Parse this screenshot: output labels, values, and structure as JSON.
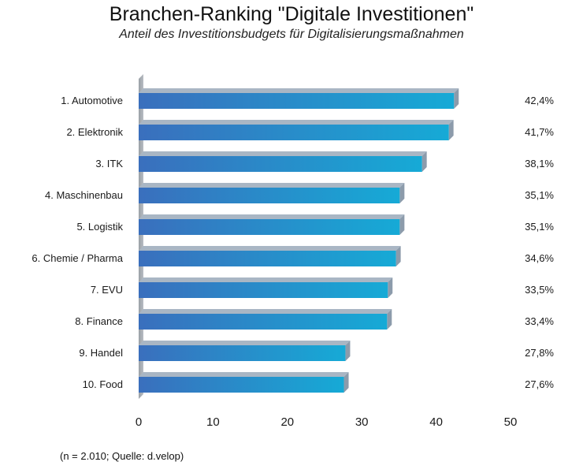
{
  "chart_data": {
    "type": "bar",
    "orientation": "horizontal",
    "title": "Branchen-Ranking \"Digitale Investitionen\"",
    "subtitle": "Anteil des Investitionsbudgets für Digitalisierungsmaßnahmen",
    "categories": [
      "1. Automotive",
      "2. Elektronik",
      "3. ITK",
      "4. Maschinenbau",
      "5. Logistik",
      "6. Chemie / Pharma",
      "7. EVU",
      "8. Finance",
      "9. Handel",
      "10. Food"
    ],
    "values": [
      42.4,
      41.7,
      38.1,
      35.1,
      35.1,
      34.6,
      33.5,
      33.4,
      27.8,
      27.6
    ],
    "value_labels": [
      "42,4%",
      "41,7%",
      "38,1%",
      "35,1%",
      "35,1%",
      "34,6%",
      "33,5%",
      "33,4%",
      "27,8%",
      "27,6%"
    ],
    "xlim": [
      0,
      50
    ],
    "x_ticks": [
      "0",
      "10",
      "20",
      "30",
      "40",
      "50"
    ],
    "grid": false,
    "colors": {
      "bar_left": "#3a6fbd",
      "bar_right": "#16aad6",
      "bar_shadow": "#8c9bab",
      "axis_panel": "#b7bcc2"
    },
    "source": "(n = 2.010; Quelle: d.velop)"
  }
}
